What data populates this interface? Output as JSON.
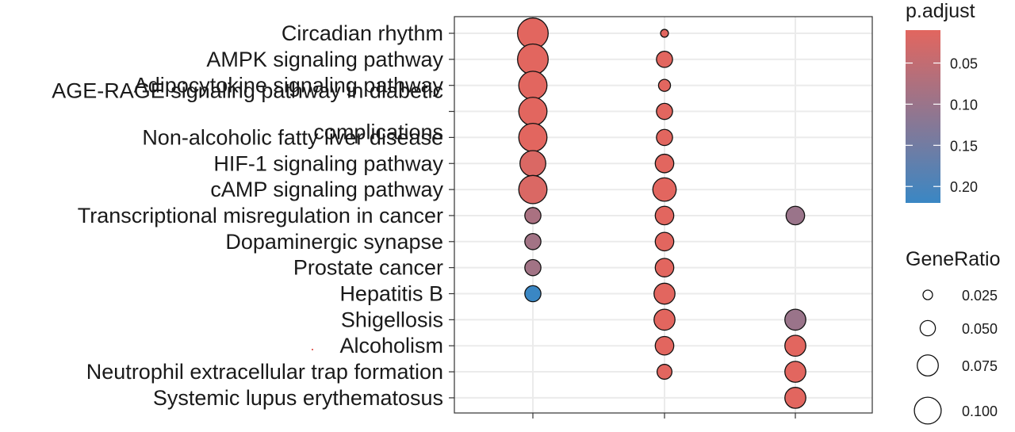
{
  "chart_data": {
    "type": "scatter",
    "title": "",
    "xlabel": "",
    "ylabel": "",
    "columns": [
      "",
      "",
      ""
    ],
    "categories": [
      "Circadian rhythm",
      "AMPK signaling pathway",
      "Adipocytokine signaling pathway",
      "AGE-RAGE signaling pathway in diabetic complications",
      "Non-alcoholic fatty liver disease",
      "HIF-1 signaling pathway",
      "cAMP signaling pathway",
      "Transcriptional misregulation in cancer",
      "Dopaminergic synapse",
      "Prostate cancer",
      "Hepatitis B",
      "Shigellosis",
      "Alcoholism",
      "Neutrophil extracellular trap formation",
      "Systemic lupus erythematosus"
    ],
    "category_lines": [
      [
        "Circadian rhythm"
      ],
      [
        "AMPK signaling pathway"
      ],
      [
        "Adipocytokine signaling pathway"
      ],
      [
        "AGE-RAGE signaling pathway in diabetic",
        "complications"
      ],
      [
        "Non-alcoholic fatty liver disease"
      ],
      [
        "HIF-1 signaling pathway"
      ],
      [
        "cAMP signaling pathway"
      ],
      [
        "Transcriptional misregulation in cancer"
      ],
      [
        "Dopaminergic synapse"
      ],
      [
        "Prostate cancer"
      ],
      [
        "Hepatitis B"
      ],
      [
        "Shigellosis"
      ],
      [
        "Alcoholism"
      ],
      [
        "Neutrophil extracellular trap formation"
      ],
      [
        "Systemic lupus erythematosus"
      ]
    ],
    "points": [
      {
        "pathway": 0,
        "column": 0,
        "gene_ratio": 0.11,
        "p_adjust": 0.01
      },
      {
        "pathway": 1,
        "column": 0,
        "gene_ratio": 0.11,
        "p_adjust": 0.01
      },
      {
        "pathway": 2,
        "column": 0,
        "gene_ratio": 0.1,
        "p_adjust": 0.01
      },
      {
        "pathway": 3,
        "column": 0,
        "gene_ratio": 0.1,
        "p_adjust": 0.01
      },
      {
        "pathway": 4,
        "column": 0,
        "gene_ratio": 0.1,
        "p_adjust": 0.01
      },
      {
        "pathway": 5,
        "column": 0,
        "gene_ratio": 0.09,
        "p_adjust": 0.02
      },
      {
        "pathway": 6,
        "column": 0,
        "gene_ratio": 0.1,
        "p_adjust": 0.02
      },
      {
        "pathway": 7,
        "column": 0,
        "gene_ratio": 0.05,
        "p_adjust": 0.08
      },
      {
        "pathway": 8,
        "column": 0,
        "gene_ratio": 0.05,
        "p_adjust": 0.09
      },
      {
        "pathway": 9,
        "column": 0,
        "gene_ratio": 0.05,
        "p_adjust": 0.09
      },
      {
        "pathway": 10,
        "column": 0,
        "gene_ratio": 0.05,
        "p_adjust": 0.22
      },
      {
        "pathway": 0,
        "column": 1,
        "gene_ratio": 0.016,
        "p_adjust": 0.01
      },
      {
        "pathway": 1,
        "column": 1,
        "gene_ratio": 0.05,
        "p_adjust": 0.01
      },
      {
        "pathway": 2,
        "column": 1,
        "gene_ratio": 0.033,
        "p_adjust": 0.01
      },
      {
        "pathway": 3,
        "column": 1,
        "gene_ratio": 0.05,
        "p_adjust": 0.01
      },
      {
        "pathway": 4,
        "column": 1,
        "gene_ratio": 0.05,
        "p_adjust": 0.01
      },
      {
        "pathway": 5,
        "column": 1,
        "gene_ratio": 0.06,
        "p_adjust": 0.01
      },
      {
        "pathway": 6,
        "column": 1,
        "gene_ratio": 0.08,
        "p_adjust": 0.01
      },
      {
        "pathway": 7,
        "column": 1,
        "gene_ratio": 0.06,
        "p_adjust": 0.01
      },
      {
        "pathway": 8,
        "column": 1,
        "gene_ratio": 0.06,
        "p_adjust": 0.01
      },
      {
        "pathway": 9,
        "column": 1,
        "gene_ratio": 0.06,
        "p_adjust": 0.01
      },
      {
        "pathway": 10,
        "column": 1,
        "gene_ratio": 0.07,
        "p_adjust": 0.01
      },
      {
        "pathway": 11,
        "column": 1,
        "gene_ratio": 0.07,
        "p_adjust": 0.01
      },
      {
        "pathway": 12,
        "column": 1,
        "gene_ratio": 0.06,
        "p_adjust": 0.01
      },
      {
        "pathway": 13,
        "column": 1,
        "gene_ratio": 0.045,
        "p_adjust": 0.01
      },
      {
        "pathway": 7,
        "column": 2,
        "gene_ratio": 0.06,
        "p_adjust": 0.1
      },
      {
        "pathway": 11,
        "column": 2,
        "gene_ratio": 0.07,
        "p_adjust": 0.1
      },
      {
        "pathway": 12,
        "column": 2,
        "gene_ratio": 0.07,
        "p_adjust": 0.01
      },
      {
        "pathway": 13,
        "column": 2,
        "gene_ratio": 0.07,
        "p_adjust": 0.01
      },
      {
        "pathway": 14,
        "column": 2,
        "gene_ratio": 0.07,
        "p_adjust": 0.01
      }
    ],
    "color_scale": {
      "title": "p.adjust",
      "low_value": 0.01,
      "high_value": 0.22,
      "low_color": "#e2665f",
      "high_color": "#3a87c4",
      "ticks": [
        0.05,
        0.1,
        0.15,
        0.2
      ],
      "tick_labels": [
        "0.05",
        "0.10",
        "0.15",
        "0.20"
      ]
    },
    "size_legend": {
      "title": "GeneRatio",
      "values": [
        0.025,
        0.05,
        0.075,
        0.1
      ],
      "labels": [
        "0.025",
        "0.050",
        "0.075",
        "0.100"
      ]
    },
    "grid": true,
    "legend_position": "right"
  }
}
